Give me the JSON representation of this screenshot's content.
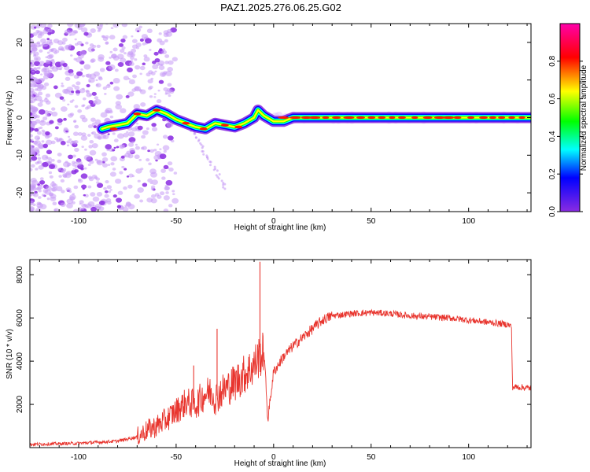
{
  "figure": {
    "title": "PAZ1.2025.276.06.25.G02"
  },
  "chart_data": [
    {
      "type": "heatmap",
      "name": "spectrogram",
      "xlabel": "Height of straight line (km)",
      "ylabel": "Frequency (Hz)",
      "xlim": [
        -125,
        132
      ],
      "ylim": [
        -25,
        25
      ],
      "xticks": [
        -100,
        -50,
        0,
        50,
        100
      ],
      "yticks": [
        -20,
        -10,
        0,
        10,
        20
      ],
      "colorbar": {
        "label": "Normalized spectral amplitude",
        "range": [
          0.0,
          1.0
        ],
        "ticks": [
          0.0,
          0.2,
          0.4,
          0.6,
          0.8
        ],
        "colormap": [
          "#8a2be2",
          "#0000ff",
          "#00ffff",
          "#00ff00",
          "#ffff00",
          "#ff0000",
          "#ff00aa"
        ]
      },
      "ridge": {
        "description_free_data": true,
        "points": [
          [
            -88,
            -3.0
          ],
          [
            -85,
            -2.5
          ],
          [
            -80,
            -2.0
          ],
          [
            -75,
            -1.5
          ],
          [
            -70,
            1.0
          ],
          [
            -65,
            0.5
          ],
          [
            -60,
            2.0
          ],
          [
            -55,
            1.0
          ],
          [
            -50,
            -0.5
          ],
          [
            -45,
            -1.5
          ],
          [
            -40,
            -2.5
          ],
          [
            -35,
            -3.0
          ],
          [
            -30,
            -1.5
          ],
          [
            -25,
            -2.0
          ],
          [
            -20,
            -2.5
          ],
          [
            -15,
            -1.5
          ],
          [
            -10,
            0.0
          ],
          [
            -8,
            2.0
          ],
          [
            -5,
            0.5
          ],
          [
            0,
            -1.0
          ],
          [
            5,
            -1.0
          ],
          [
            10,
            0.0
          ],
          [
            20,
            0.0
          ],
          [
            40,
            0.0
          ],
          [
            60,
            0.0
          ],
          [
            80,
            0.0
          ],
          [
            100,
            0.0
          ],
          [
            120,
            0.0
          ],
          [
            132,
            0.0
          ]
        ]
      }
    },
    {
      "type": "line",
      "name": "snr",
      "xlabel": "Height of straight line (km)",
      "ylabel": "SNR (10 * v/v)",
      "xlim": [
        -125,
        132
      ],
      "ylim": [
        0,
        8700
      ],
      "xticks": [
        -100,
        -50,
        0,
        50,
        100
      ],
      "yticks": [
        2000,
        4000,
        6000,
        8000
      ],
      "color": "#e8352e",
      "series": [
        {
          "name": "SNR",
          "x": [
            -125,
            -110,
            -100,
            -90,
            -80,
            -75,
            -70,
            -65,
            -60,
            -55,
            -50,
            -45,
            -40,
            -35,
            -32,
            -30,
            -28,
            -25,
            -20,
            -15,
            -10,
            -7,
            -6,
            -5,
            -4,
            -3,
            0,
            5,
            10,
            15,
            20,
            25,
            30,
            35,
            40,
            50,
            60,
            70,
            80,
            90,
            100,
            110,
            120,
            122,
            122.5,
            126,
            132
          ],
          "y": [
            150,
            180,
            200,
            250,
            300,
            400,
            500,
            800,
            1000,
            1300,
            1700,
            2100,
            2000,
            2500,
            2600,
            2300,
            2500,
            2700,
            3000,
            3400,
            3800,
            4300,
            4200,
            4500,
            3000,
            1300,
            3500,
            4200,
            4700,
            5100,
            5500,
            5900,
            6100,
            6150,
            6200,
            6250,
            6200,
            6100,
            6050,
            6000,
            5900,
            5800,
            5700,
            5600,
            2800,
            2800,
            2750
          ]
        }
      ],
      "spikes": [
        {
          "x": -7,
          "y": 8600
        },
        {
          "x": -29,
          "y": 5500
        },
        {
          "x": -41,
          "y": 3800
        }
      ]
    }
  ]
}
